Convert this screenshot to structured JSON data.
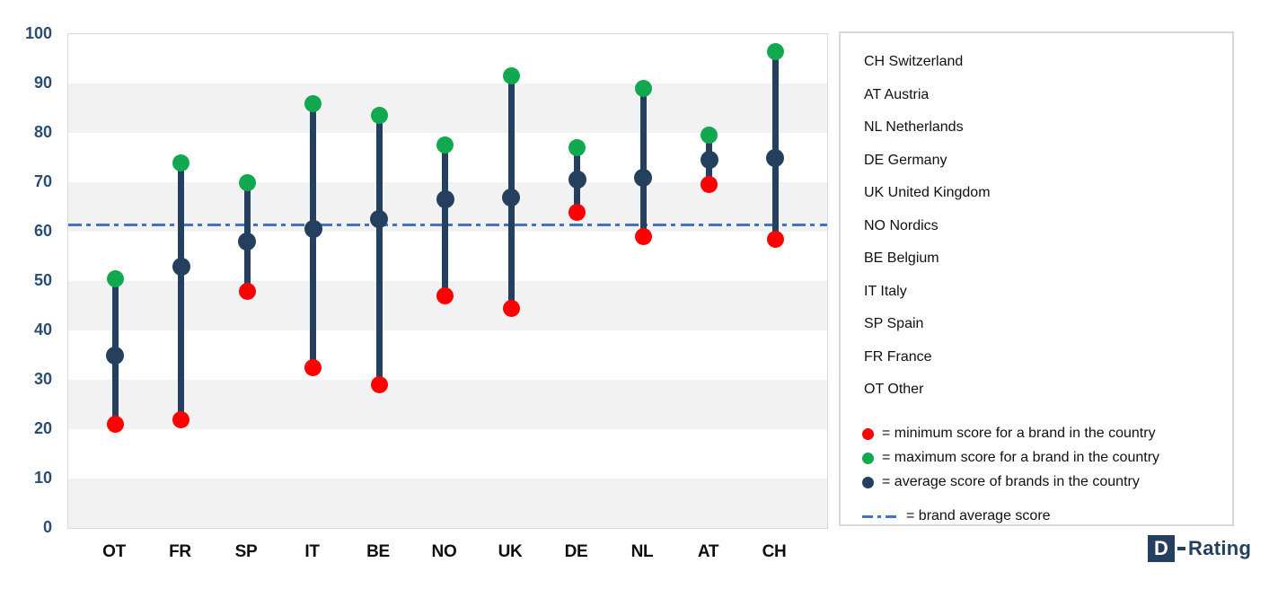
{
  "chart_data": {
    "type": "scatter",
    "subtype": "lollipop-range",
    "title": "",
    "xlabel": "",
    "ylabel": "",
    "categories": [
      "OT",
      "FR",
      "SP",
      "IT",
      "BE",
      "NO",
      "UK",
      "DE",
      "NL",
      "AT",
      "CH"
    ],
    "series": [
      {
        "name": "minimum score for a brand in the country",
        "marker": "dot",
        "color": "#ff0000",
        "values": [
          21,
          22,
          48,
          32.5,
          29,
          47,
          44.5,
          64,
          59,
          69.5,
          58.5
        ]
      },
      {
        "name": "maximum score for a brand in the country",
        "marker": "dot",
        "color": "#10a94f",
        "values": [
          50.5,
          74,
          70,
          86,
          83.5,
          77.5,
          91.5,
          77,
          89,
          79.5,
          96.5
        ]
      },
      {
        "name": "average score of brands in the country",
        "marker": "dot",
        "color": "#24405e",
        "values": [
          35,
          53,
          58,
          60.5,
          62.5,
          66.5,
          67,
          70.5,
          71,
          74.5,
          75
        ]
      }
    ],
    "range_bar": {
      "from": "minimum",
      "to": "maximum",
      "color": "#24405e"
    },
    "reference_line": {
      "value": 61.3,
      "label": "brand average score",
      "color": "#4472c4",
      "style": "dash-dot"
    },
    "ylim": [
      0,
      100
    ],
    "yticks": [
      0,
      10,
      20,
      30,
      40,
      50,
      60,
      70,
      80,
      90,
      100
    ],
    "grid": "horizontal-bands",
    "band_colors": [
      "#ffffff",
      "#f2f2f2"
    ],
    "legend_position": "right"
  },
  "legend": {
    "countries": [
      {
        "code": "CH",
        "name": "Switzerland"
      },
      {
        "code": "AT",
        "name": "Austria"
      },
      {
        "code": "NL",
        "name": "Netherlands"
      },
      {
        "code": "DE",
        "name": "Germany"
      },
      {
        "code": "UK",
        "name": "United Kingdom"
      },
      {
        "code": "NO",
        "name": "Nordics"
      },
      {
        "code": "BE",
        "name": "Belgium"
      },
      {
        "code": "IT",
        "name": "Italy"
      },
      {
        "code": "SP",
        "name": "Spain"
      },
      {
        "code": "FR",
        "name": "France"
      },
      {
        "code": "OT",
        "name": "Other"
      }
    ],
    "symbols": [
      {
        "marker": "red-dot",
        "color": "#ff0000",
        "label": "= minimum score for a brand in the country"
      },
      {
        "marker": "green-dot",
        "color": "#10a94f",
        "label": "= maximum score for a brand in the country"
      },
      {
        "marker": "navy-dot",
        "color": "#24405e",
        "label": "= average score of brands in the country"
      },
      {
        "marker": "dash-dot-line",
        "color": "#4472c4",
        "label": "= brand average score"
      }
    ]
  },
  "logo": {
    "d_letter": "D",
    "separator": "-",
    "text": "Rating"
  }
}
